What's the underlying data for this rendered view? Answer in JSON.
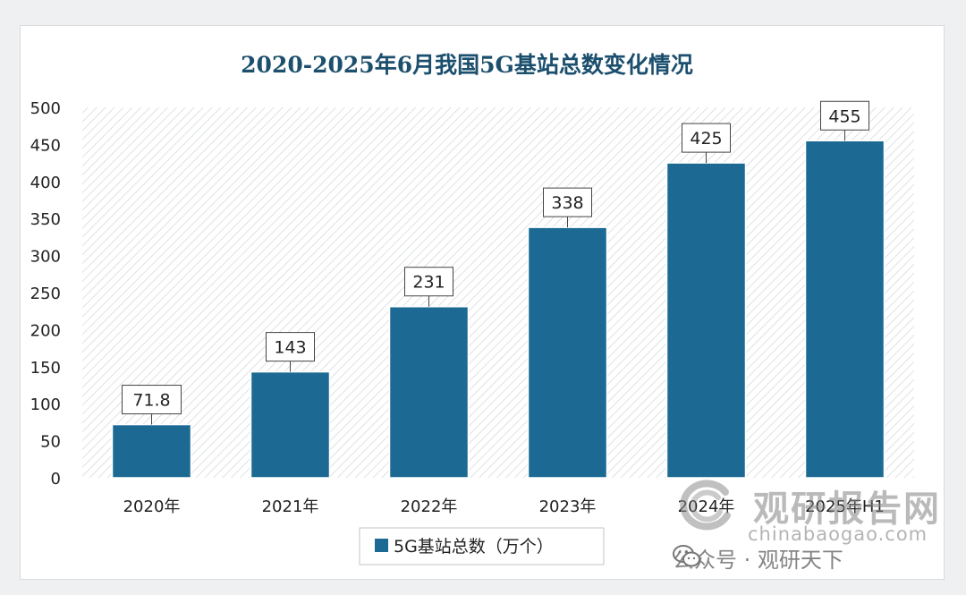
{
  "chart_data": {
    "type": "bar",
    "title": "2020-2025年6月我国5G基站总数变化情况",
    "categories": [
      "2020年",
      "2021年",
      "2022年",
      "2023年",
      "2024年",
      "2025年H1"
    ],
    "series": [
      {
        "name": "5G基站总数（万个）",
        "values": [
          71.8,
          143,
          231,
          338,
          425,
          455
        ]
      }
    ],
    "data_labels": [
      "71.8",
      "143",
      "231",
      "338",
      "425",
      "455"
    ],
    "y_ticks": [
      "0",
      "50",
      "100",
      "150",
      "200",
      "250",
      "300",
      "350",
      "400",
      "450",
      "500"
    ],
    "ylim": [
      0,
      500
    ],
    "xlabel": "",
    "ylabel": "",
    "legend_position": "bottom",
    "bar_color": "#1c6a93",
    "grid": false
  },
  "watermark": {
    "title": "观研报告网",
    "url": "chinabaogao.com",
    "account": "公众号 · 观研天下"
  }
}
